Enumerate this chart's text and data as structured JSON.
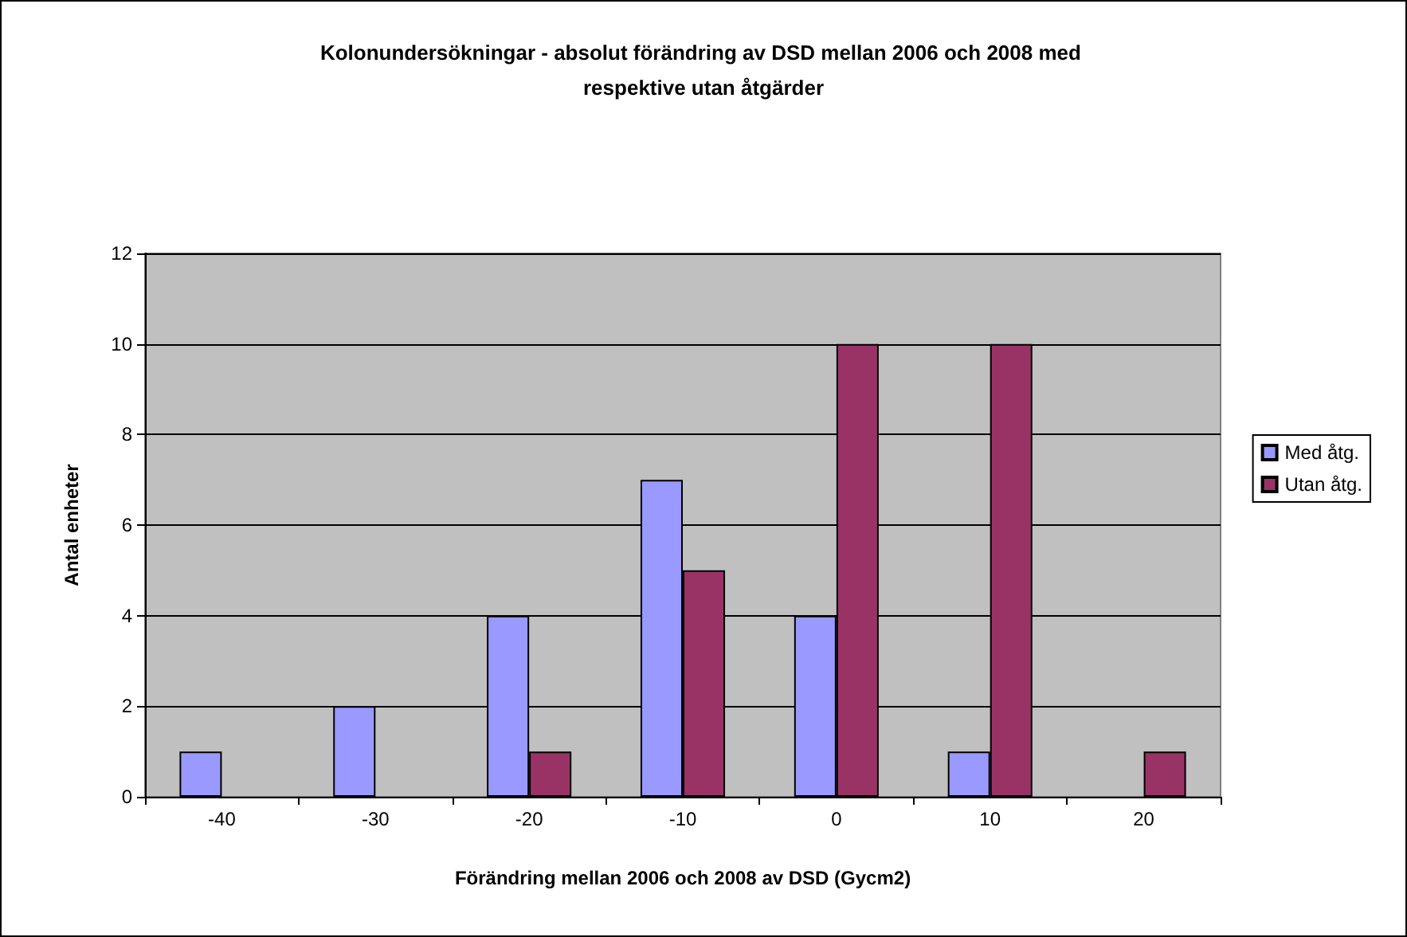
{
  "chart_data": {
    "type": "bar",
    "title": "Kolonundersökningar - absolut förändring av DSD mellan 2006 och 2008 med respektive utan åtgärder",
    "xlabel": "Förändring mellan 2006 och 2008 av DSD (Gycm2)",
    "ylabel": "Antal enheter",
    "categories": [
      "-40",
      "-30",
      "-20",
      "-10",
      "0",
      "10",
      "20"
    ],
    "series": [
      {
        "name": "Med åtg.",
        "color": "#9999ff",
        "values": [
          1,
          2,
          4,
          7,
          4,
          1,
          0
        ]
      },
      {
        "name": "Utan åtg.",
        "color": "#993366",
        "values": [
          0,
          0,
          1,
          5,
          10,
          10,
          1
        ]
      }
    ],
    "ylim": [
      0,
      12
    ],
    "yticks": [
      0,
      2,
      4,
      6,
      8,
      10,
      12
    ],
    "grid": "y",
    "legend": "right"
  }
}
